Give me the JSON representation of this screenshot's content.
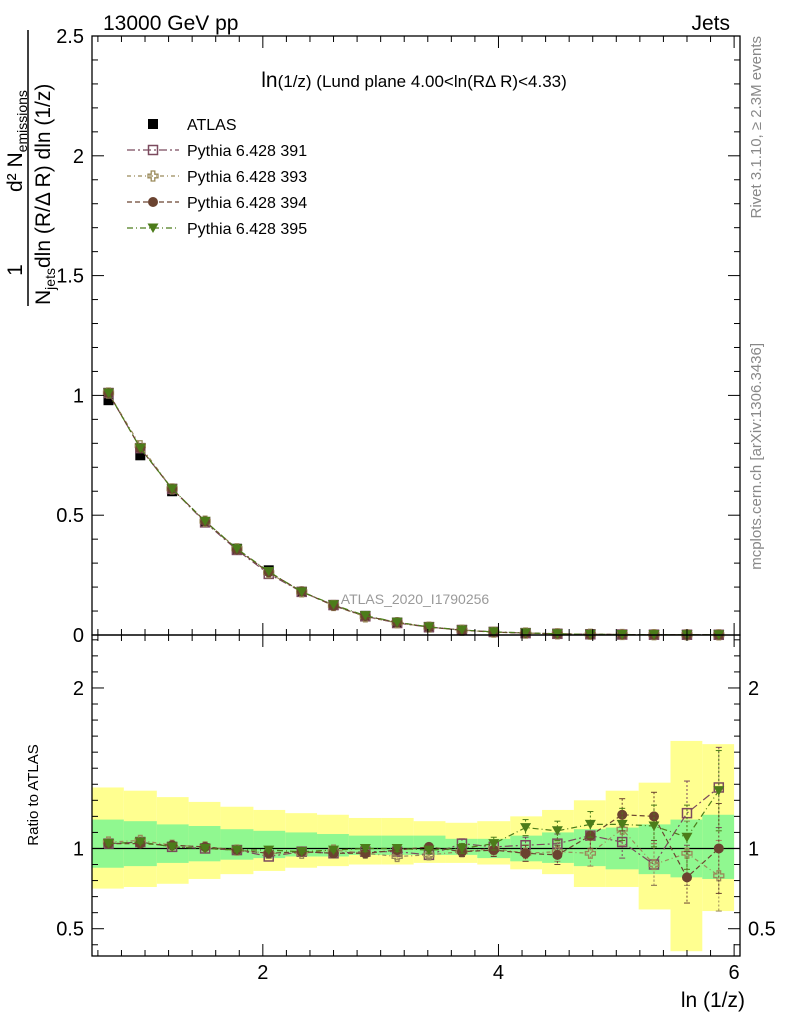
{
  "header": {
    "left": "13000 GeV pp",
    "right": "Jets"
  },
  "plot_title": "ln(1/z) (Lund plane 4.00<ln(RΔ R)<4.33)",
  "watermark": "ATLAS_2020_I1790256",
  "side_right_top": "Rivet 3.1.10, ≥ 2.3M events",
  "side_right_bottom": "mcplots.cern.ch [arXiv:1306.3436]",
  "ylabel_main": "1/N_jets d²N_emissions / dln(R/ΔR) dln(1/z)",
  "ylabel_ratio": "Ratio to ATLAS",
  "xlabel": "ln (1/z)",
  "colors": {
    "atlas": "#000000",
    "p391": "#7b4a5e",
    "p393": "#9a8a5a",
    "p394": "#6b4330",
    "p395": "#4c7c1a",
    "band_inner": "#90f890",
    "band_outer": "#ffff90"
  },
  "chart_data": [
    {
      "type": "scatter",
      "panel": "main",
      "x": [
        0.69,
        0.96,
        1.23,
        1.51,
        1.78,
        2.05,
        2.33,
        2.6,
        2.87,
        3.14,
        3.41,
        3.69,
        3.96,
        4.23,
        4.5,
        4.78,
        5.05,
        5.32,
        5.6,
        5.87
      ],
      "xlim": [
        0.55,
        6.05
      ],
      "ylim": [
        0,
        2.5
      ],
      "yticks": [
        0,
        0.5,
        1,
        1.5,
        2,
        2.5
      ],
      "ytick_labels": [
        "0",
        "0.5",
        "1",
        "1.5",
        "2",
        "2.5"
      ],
      "xticks": [
        2,
        4,
        6
      ],
      "xtick_labels": [
        "2",
        "4",
        "6"
      ],
      "series": [
        {
          "name": "ATLAS",
          "marker": "square-filled",
          "color": "#000000",
          "values": [
            0.98,
            0.75,
            0.6,
            0.47,
            0.36,
            0.27,
            0.18,
            0.125,
            0.08,
            0.052,
            0.032,
            0.02,
            0.012,
            0.008,
            0.005,
            0.003,
            0.002,
            0.0015,
            0.001,
            0.0008
          ]
        },
        {
          "name": "Pythia 6.428 391",
          "marker": "square-open",
          "color": "#7b4a5e",
          "values": [
            1.01,
            0.78,
            0.61,
            0.47,
            0.355,
            0.255,
            0.18,
            0.125,
            0.078,
            0.05,
            0.033,
            0.021,
            0.013,
            0.008,
            0.005,
            0.003,
            0.002,
            0.0014,
            0.0011,
            0.0009
          ]
        },
        {
          "name": "Pythia 6.428 393",
          "marker": "cross-open",
          "color": "#9a8a5a",
          "values": [
            1.01,
            0.79,
            0.61,
            0.475,
            0.36,
            0.26,
            0.18,
            0.123,
            0.076,
            0.051,
            0.033,
            0.02,
            0.012,
            0.008,
            0.005,
            0.003,
            0.002,
            0.0014,
            0.001,
            0.0007
          ]
        },
        {
          "name": "Pythia 6.428 394",
          "marker": "circle-filled",
          "color": "#6b4330",
          "values": [
            1.01,
            0.78,
            0.61,
            0.475,
            0.357,
            0.262,
            0.182,
            0.122,
            0.079,
            0.053,
            0.033,
            0.02,
            0.012,
            0.008,
            0.005,
            0.003,
            0.002,
            0.0012,
            0.0008,
            0.0008
          ]
        },
        {
          "name": "Pythia 6.428 395",
          "marker": "triangle-down-filled",
          "color": "#4c7c1a",
          "values": [
            1.01,
            0.78,
            0.61,
            0.475,
            0.36,
            0.265,
            0.18,
            0.126,
            0.081,
            0.053,
            0.034,
            0.021,
            0.013,
            0.009,
            0.005,
            0.003,
            0.002,
            0.0014,
            0.0011,
            0.0008
          ]
        }
      ]
    },
    {
      "type": "scatter",
      "panel": "ratio",
      "x": [
        0.69,
        0.96,
        1.23,
        1.51,
        1.78,
        2.05,
        2.33,
        2.6,
        2.87,
        3.14,
        3.41,
        3.69,
        3.96,
        4.23,
        4.5,
        4.78,
        5.05,
        5.32,
        5.6,
        5.87
      ],
      "bin_edges": [
        0.55,
        0.82,
        1.1,
        1.37,
        1.64,
        1.92,
        2.19,
        2.46,
        2.73,
        3.01,
        3.28,
        3.55,
        3.82,
        4.1,
        4.37,
        4.64,
        4.91,
        5.19,
        5.46,
        5.73,
        6.0
      ],
      "xlim": [
        0.55,
        6.05
      ],
      "ylim": [
        0.33,
        2.33
      ],
      "yticks": [
        0.5,
        1,
        2
      ],
      "ytick_labels": [
        "0.5",
        "1",
        "2"
      ],
      "band_inner": [
        [
          0.88,
          1.18
        ],
        [
          0.89,
          1.17
        ],
        [
          0.91,
          1.15
        ],
        [
          0.92,
          1.14
        ],
        [
          0.93,
          1.12
        ],
        [
          0.94,
          1.11
        ],
        [
          0.95,
          1.1
        ],
        [
          0.95,
          1.09
        ],
        [
          0.96,
          1.08
        ],
        [
          0.96,
          1.08
        ],
        [
          0.96,
          1.08
        ],
        [
          0.96,
          1.06
        ],
        [
          0.94,
          1.06
        ],
        [
          0.92,
          1.08
        ],
        [
          0.91,
          1.1
        ],
        [
          0.89,
          1.12
        ],
        [
          0.87,
          1.13
        ],
        [
          0.84,
          1.15
        ],
        [
          0.82,
          1.18
        ],
        [
          0.81,
          1.21
        ]
      ],
      "band_outer": [
        [
          0.75,
          1.38
        ],
        [
          0.76,
          1.36
        ],
        [
          0.78,
          1.32
        ],
        [
          0.81,
          1.29
        ],
        [
          0.84,
          1.26
        ],
        [
          0.86,
          1.24
        ],
        [
          0.88,
          1.22
        ],
        [
          0.89,
          1.21
        ],
        [
          0.9,
          1.19
        ],
        [
          0.9,
          1.19
        ],
        [
          0.91,
          1.17
        ],
        [
          0.91,
          1.16
        ],
        [
          0.9,
          1.17
        ],
        [
          0.87,
          1.2
        ],
        [
          0.84,
          1.24
        ],
        [
          0.76,
          1.3
        ],
        [
          0.76,
          1.36
        ],
        [
          0.62,
          1.41
        ],
        [
          0.36,
          1.67
        ],
        [
          0.61,
          1.65
        ]
      ],
      "series": [
        {
          "name": "Pythia 6.428 391",
          "marker": "square-open",
          "color": "#7b4a5e",
          "values": [
            1.03,
            1.04,
            1.01,
            1.0,
            0.99,
            0.95,
            0.98,
            0.97,
            0.98,
            0.98,
            0.96,
            1.03,
            1.01,
            1.02,
            1.03,
            1.08,
            1.04,
            0.9,
            1.22,
            1.38
          ],
          "errors": [
            0.01,
            0.01,
            0.01,
            0.01,
            0.01,
            0.01,
            0.01,
            0.01,
            0.02,
            0.02,
            0.02,
            0.03,
            0.04,
            0.05,
            0.06,
            0.08,
            0.1,
            0.13,
            0.2,
            0.25
          ]
        },
        {
          "name": "Pythia 6.428 393",
          "marker": "cross-open",
          "color": "#9a8a5a",
          "values": [
            1.04,
            1.05,
            1.02,
            1.01,
            0.99,
            0.97,
            0.97,
            0.99,
            0.97,
            0.95,
            0.96,
            0.98,
            1.0,
            0.97,
            0.98,
            0.97,
            1.12,
            0.9,
            0.97,
            0.83
          ],
          "errors": [
            0.01,
            0.01,
            0.01,
            0.01,
            0.01,
            0.01,
            0.01,
            0.01,
            0.02,
            0.02,
            0.02,
            0.03,
            0.04,
            0.05,
            0.06,
            0.08,
            0.1,
            0.13,
            0.2,
            0.22
          ]
        },
        {
          "name": "Pythia 6.428 394",
          "marker": "circle-filled",
          "color": "#6b4330",
          "values": [
            1.03,
            1.03,
            1.02,
            1.01,
            0.99,
            0.97,
            0.98,
            0.97,
            0.97,
            0.99,
            1.01,
            0.98,
            0.99,
            0.97,
            0.96,
            1.08,
            1.21,
            1.2,
            0.82,
            1.0
          ],
          "errors": [
            0.01,
            0.01,
            0.01,
            0.01,
            0.01,
            0.01,
            0.01,
            0.01,
            0.02,
            0.02,
            0.02,
            0.03,
            0.04,
            0.05,
            0.06,
            0.08,
            0.1,
            0.15,
            0.16,
            0.28
          ]
        },
        {
          "name": "Pythia 6.428 395",
          "marker": "triangle-down-filled",
          "color": "#4c7c1a",
          "values": [
            1.03,
            1.04,
            1.01,
            1.0,
            0.99,
            0.99,
            0.98,
            0.99,
            1.0,
            1.0,
            0.99,
            1.0,
            1.03,
            1.13,
            1.11,
            1.15,
            1.15,
            1.14,
            1.07,
            1.36
          ],
          "errors": [
            0.01,
            0.01,
            0.01,
            0.01,
            0.01,
            0.01,
            0.01,
            0.01,
            0.02,
            0.02,
            0.02,
            0.03,
            0.04,
            0.05,
            0.06,
            0.08,
            0.1,
            0.13,
            0.2,
            0.25
          ]
        }
      ]
    }
  ]
}
